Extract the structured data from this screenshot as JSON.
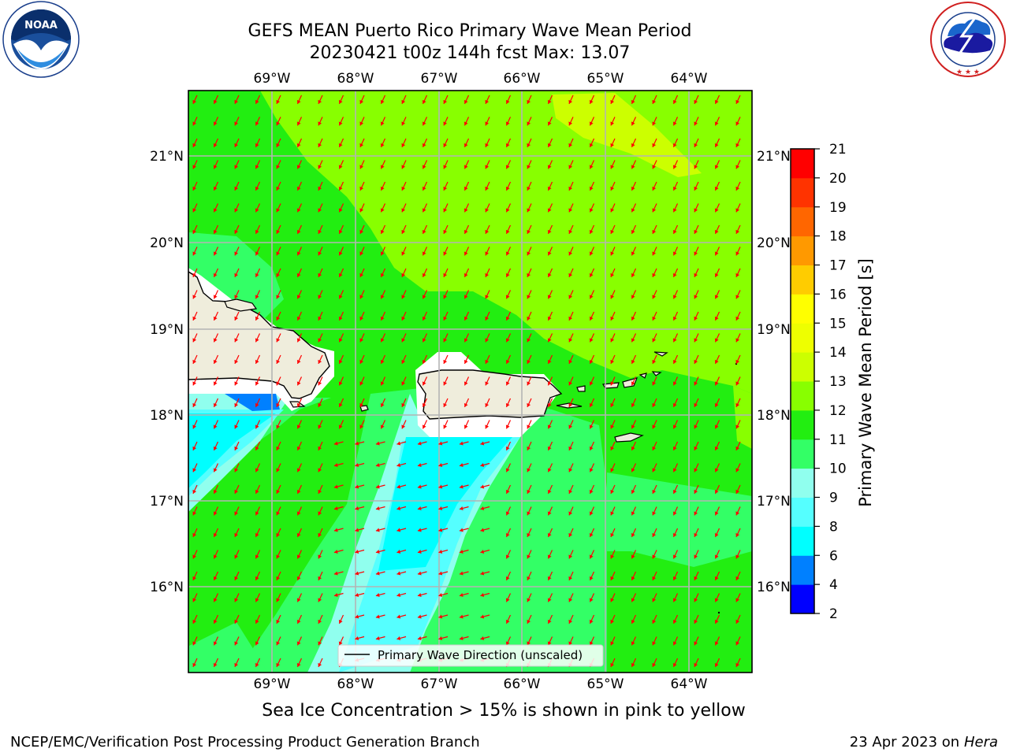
{
  "header": {
    "title_line1": "GEFS MEAN Puerto Rico Primary Wave Mean Period",
    "title_line2": "20230421 t00z 144h fcst   Max: 13.07"
  },
  "logos": {
    "left": {
      "icon": "noaa-logo",
      "text": "NOAA",
      "ring_text": "NATIONAL OCEANIC AND ATMOSPHERIC ADMINISTRATION · U.S. DEPARTMENT OF COMMERCE"
    },
    "right": {
      "icon": "nws-logo",
      "ring_text": "NATIONAL WEATHER SERVICE"
    }
  },
  "map": {
    "lon_labels": [
      "69°W",
      "68°W",
      "67°W",
      "66°W",
      "65°W",
      "64°W"
    ],
    "lat_labels": [
      "21°N",
      "20°N",
      "19°N",
      "18°N",
      "17°N",
      "16°N"
    ],
    "legend_label": "Primary Wave Direction (unscaled)",
    "colors": {
      "land": "#efeddc",
      "coast": "#000000",
      "arrow": "#ff0000",
      "grid": "#b4b4b4"
    }
  },
  "colorbar": {
    "label": "Primary Wave Mean Period [s]",
    "ticks": [
      "2",
      "4",
      "6",
      "8",
      "9",
      "10",
      "11",
      "12",
      "13",
      "14",
      "15",
      "16",
      "17",
      "18",
      "19",
      "20",
      "21"
    ],
    "colors": [
      "#0000ff",
      "#0080ff",
      "#00ffff",
      "#55ffff",
      "#90ffee",
      "#33ff66",
      "#22ee11",
      "#88ff00",
      "#ccff00",
      "#eeff00",
      "#ffff00",
      "#ffcc00",
      "#ff9900",
      "#ff6600",
      "#ff3300",
      "#ff0000"
    ]
  },
  "caption": "Sea Ice Concentration > 15% is shown in pink to yellow",
  "footer": {
    "left": "NCEP/EMC/Verification Post Processing Product Generation Branch",
    "date": "23 Apr 2023 on ",
    "host": "Hera"
  }
}
